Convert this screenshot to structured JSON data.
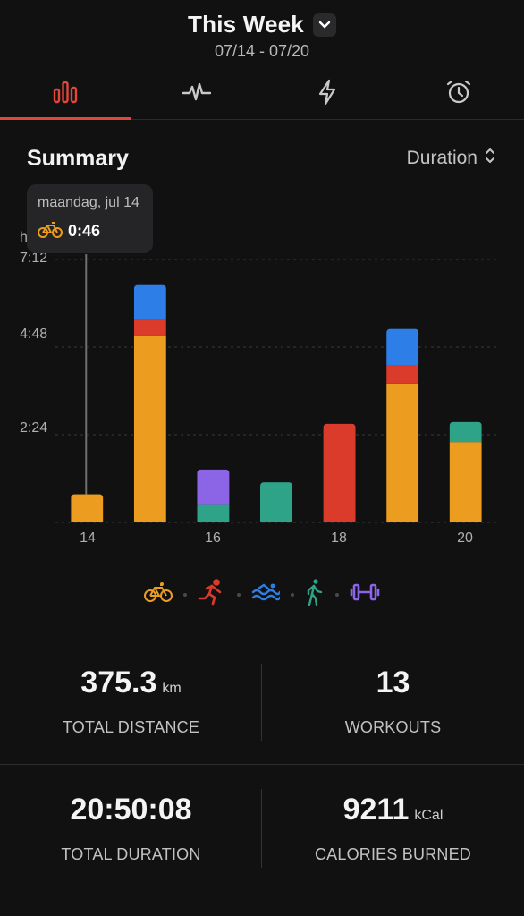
{
  "header": {
    "title": "This Week",
    "date_range": "07/14 - 07/20"
  },
  "tabs": [
    {
      "icon": "bar-chart-icon",
      "active": true
    },
    {
      "icon": "heart-rate-icon",
      "active": false
    },
    {
      "icon": "lightning-icon",
      "active": false
    },
    {
      "icon": "alarm-clock-icon",
      "active": false
    }
  ],
  "summary": {
    "title": "Summary",
    "sort_label": "Duration"
  },
  "tooltip": {
    "date": "maandag, jul 14",
    "value": "0:46",
    "icon": "bike-icon"
  },
  "colors": {
    "accent": "#e2473a",
    "cycling": "#ec9c1e",
    "running": "#db3b2b",
    "swimming": "#2d7ee6",
    "walking": "#2fa388",
    "strength": "#8b65e6"
  },
  "chart_data": {
    "type": "bar",
    "stacked": true,
    "yunit_label": "h",
    "yticks": [
      "2:24",
      "4:48",
      "7:12"
    ],
    "ytick_values": [
      2.4,
      4.8,
      7.2
    ],
    "ylim": [
      0,
      7.2
    ],
    "categories": [
      "14",
      "15",
      "16",
      "17",
      "18",
      "19",
      "20"
    ],
    "xtick_labels": [
      "14",
      "16",
      "18",
      "20"
    ],
    "series": [
      {
        "name": "Cycling",
        "color": "#ec9c1e",
        "values": [
          0.77,
          5.1,
          0,
          0,
          0,
          3.8,
          2.2
        ]
      },
      {
        "name": "Running",
        "color": "#db3b2b",
        "values": [
          0,
          0.45,
          0,
          0,
          2.7,
          0.5,
          0
        ]
      },
      {
        "name": "Swimming",
        "color": "#2d7ee6",
        "values": [
          0,
          0.95,
          0,
          0,
          0,
          1.0,
          0
        ]
      },
      {
        "name": "Walking",
        "color": "#2fa388",
        "values": [
          0,
          0,
          0.5,
          1.1,
          0,
          0,
          0.55
        ]
      },
      {
        "name": "Strength",
        "color": "#8b65e6",
        "values": [
          0,
          0,
          0.95,
          0,
          0,
          0,
          0
        ]
      }
    ],
    "selected_category": "14"
  },
  "legend": [
    {
      "icon": "bike-icon",
      "color": "#ec9c1e"
    },
    {
      "icon": "run-icon",
      "color": "#db3b2b"
    },
    {
      "icon": "swim-icon",
      "color": "#2d7ee6"
    },
    {
      "icon": "walk-icon",
      "color": "#2fa388"
    },
    {
      "icon": "dumbbell-icon",
      "color": "#8b65e6"
    }
  ],
  "stats": {
    "total_distance": {
      "value": "375.3",
      "unit": "km",
      "label": "TOTAL DISTANCE"
    },
    "workouts": {
      "value": "13",
      "label": "WORKOUTS"
    },
    "total_duration": {
      "value": "20:50:08",
      "label": "TOTAL DURATION"
    },
    "calories": {
      "value": "9211",
      "unit": "kCal",
      "label": "CALORIES BURNED"
    }
  }
}
